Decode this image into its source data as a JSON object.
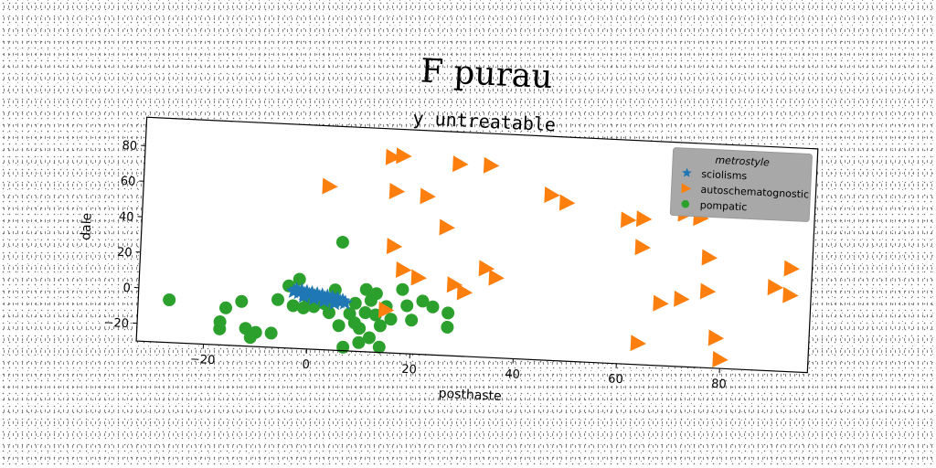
{
  "chart_data": {
    "type": "scatter",
    "suptitle": "F purau",
    "title": "y untreatable",
    "xlabel": "posthaste",
    "ylabel": "dale",
    "xlim": [
      -33,
      97
    ],
    "ylim": [
      -30,
      96
    ],
    "xticks": [
      -20,
      0,
      20,
      40,
      60,
      80
    ],
    "yticks": [
      -20,
      0,
      20,
      40,
      60,
      80
    ],
    "grid": false,
    "legend": {
      "title": "metrostyle",
      "placement": "upper right",
      "background": "#a8a8a8"
    },
    "series": [
      {
        "name": "sciolisms",
        "marker": "star",
        "color": "#1f77b4",
        "points": [
          [
            -3,
            2
          ],
          [
            -2,
            1.5
          ],
          [
            -1,
            1
          ],
          [
            0,
            0.5
          ],
          [
            1,
            0
          ],
          [
            2,
            -0.5
          ],
          [
            3,
            -1
          ],
          [
            4,
            -1.5
          ],
          [
            5,
            -2
          ],
          [
            6,
            -2.5
          ],
          [
            -2.5,
            3
          ],
          [
            -1.5,
            2.5
          ],
          [
            -0.5,
            2
          ],
          [
            0.5,
            1.5
          ],
          [
            1.5,
            1
          ],
          [
            2.5,
            0.5
          ],
          [
            3.5,
            0
          ],
          [
            4.5,
            -0.5
          ],
          [
            5.5,
            -1
          ],
          [
            6.5,
            -2
          ],
          [
            7,
            -3
          ],
          [
            -1,
            -0.5
          ],
          [
            1,
            -1.5
          ],
          [
            3,
            -2.5
          ],
          [
            5,
            -3.5
          ]
        ]
      },
      {
        "name": "autoschematognostic",
        "marker": "triangle-right",
        "color": "#ff7f0e",
        "points": [
          [
            15,
            80
          ],
          [
            17,
            81
          ],
          [
            28,
            78
          ],
          [
            34,
            78
          ],
          [
            16,
            61
          ],
          [
            22,
            59
          ],
          [
            3,
            62
          ],
          [
            46,
            63
          ],
          [
            49,
            59
          ],
          [
            61,
            51
          ],
          [
            64,
            52
          ],
          [
            72,
            56
          ],
          [
            75,
            54
          ],
          [
            26,
            42
          ],
          [
            16,
            30
          ],
          [
            64,
            36
          ],
          [
            77,
            32
          ],
          [
            93,
            28
          ],
          [
            18,
            17
          ],
          [
            21,
            13
          ],
          [
            34,
            20
          ],
          [
            36,
            15
          ],
          [
            28,
            10
          ],
          [
            30,
            6
          ],
          [
            68,
            5
          ],
          [
            72,
            8
          ],
          [
            77,
            13
          ],
          [
            90,
            17
          ],
          [
            93,
            13
          ],
          [
            15,
            -6
          ],
          [
            64,
            -18
          ],
          [
            79,
            -13
          ],
          [
            80,
            -25
          ]
        ]
      },
      {
        "name": "pompatic",
        "marker": "circle",
        "color": "#2ca02c",
        "points": [
          [
            -27,
            -6
          ],
          [
            -16,
            -9
          ],
          [
            -17,
            -17
          ],
          [
            -17,
            -21
          ],
          [
            -13,
            -5
          ],
          [
            -12,
            -20
          ],
          [
            -11,
            -25
          ],
          [
            -10,
            -22
          ],
          [
            -7,
            -22
          ],
          [
            -6,
            -3
          ],
          [
            -3,
            -6
          ],
          [
            -4,
            5
          ],
          [
            -2,
            9
          ],
          [
            -1,
            -7
          ],
          [
            0,
            -3
          ],
          [
            1,
            -6
          ],
          [
            3,
            -4
          ],
          [
            4,
            -9
          ],
          [
            5,
            4
          ],
          [
            6,
            -16
          ],
          [
            6,
            31
          ],
          [
            7,
            -28
          ],
          [
            8,
            -9
          ],
          [
            9,
            -14
          ],
          [
            9,
            -3
          ],
          [
            10,
            -17
          ],
          [
            10,
            -25
          ],
          [
            11,
            -8
          ],
          [
            11,
            5
          ],
          [
            12,
            -1
          ],
          [
            12,
            -22
          ],
          [
            13,
            3
          ],
          [
            13,
            -9
          ],
          [
            14,
            -15
          ],
          [
            14,
            -27
          ],
          [
            15,
            -4
          ],
          [
            16,
            -11
          ],
          [
            18,
            6
          ],
          [
            19,
            -3
          ],
          [
            20,
            -11
          ],
          [
            22,
            0
          ],
          [
            24,
            -3
          ],
          [
            27,
            -6
          ],
          [
            27,
            -14
          ]
        ]
      }
    ]
  }
}
